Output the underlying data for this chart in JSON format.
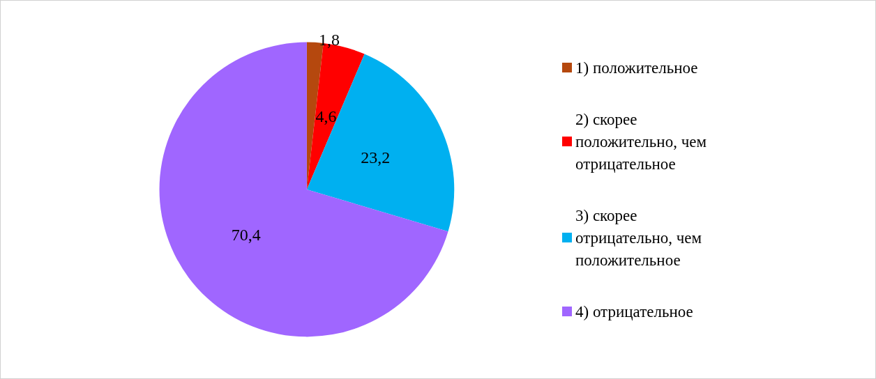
{
  "chart_data": {
    "type": "pie",
    "categories": [
      "1) положительное",
      "2) скорее положительно, чем отрицательное",
      "3) скорее отрицательно, чем положительное",
      "4) отрицательное"
    ],
    "values": [
      1.8,
      4.6,
      23.2,
      70.4
    ],
    "colors": [
      "#b5480e",
      "#ff0000",
      "#00b0f0",
      "#a066ff"
    ],
    "value_labels": [
      "1,8",
      "4,6",
      "23,2",
      "70,4"
    ],
    "legend": "right"
  }
}
